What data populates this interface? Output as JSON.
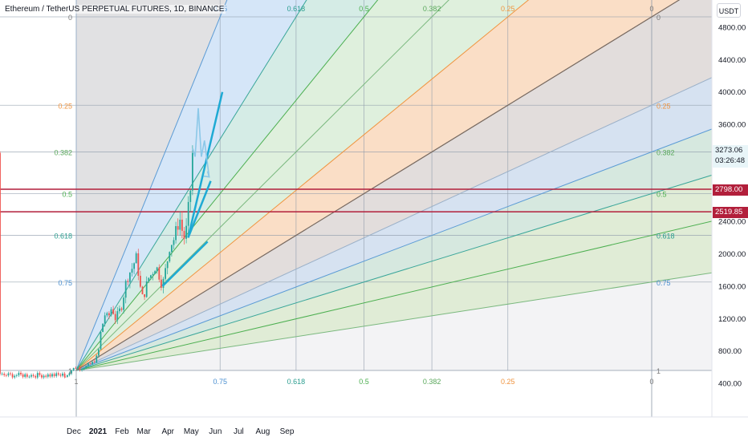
{
  "header": {
    "title": "Ethereum / TetherUS PERPETUAL FUTURES, 1D, BINANCE",
    "currency": "USDT"
  },
  "price_tags": {
    "last_price": "3273.06",
    "countdown": "03:26:48",
    "level_high": "2798.00",
    "level_low": "2519.85"
  },
  "colors": {
    "gray_fill": "#dddddf",
    "blue_fill": "#cfe3f8",
    "teal_fill": "#cfeae3",
    "green_fill": "#dbefd8",
    "orange_fill": "#fad9bd",
    "level_line": "#b21f3b",
    "arrow_line": "#1eaad4",
    "last_price_tag": "#e8f5f8",
    "candle_up": "#26a69a",
    "candle_down": "#ef5350"
  },
  "chart_data": {
    "type": "candlestick",
    "title": "Ethereum / TetherUS PERPETUAL FUTURES, 1D, BINANCE",
    "y_ticks": [
      "4800.00",
      "4400.00",
      "4000.00",
      "3600.00",
      "3200.00",
      "2800.00",
      "2400.00",
      "2000.00",
      "1600.00",
      "1200.00",
      "800.00",
      "400.00"
    ],
    "x_ticks": [
      "Dec",
      "2021",
      "Feb",
      "Mar",
      "Apr",
      "May",
      "Jun",
      "Jul",
      "Aug",
      "Sep"
    ],
    "ylim": [
      330,
      5060
    ],
    "horizontal_levels": [
      2798.0,
      2519.85
    ],
    "gann_box": {
      "price_levels": [
        "0",
        "0.25",
        "0.382",
        "0.5",
        "0.618",
        "0.75",
        "1"
      ],
      "time_levels": [
        "1",
        "0.75",
        "0.618",
        "0.5",
        "0.382",
        "0.25",
        "0"
      ],
      "fan_levels": [
        "0.75",
        "0.618",
        "0.5",
        "0.382",
        "0.25",
        "0"
      ]
    },
    "ohlc_path": [
      [
        "2020-11-20",
        480
      ],
      [
        "2020-11-27",
        560
      ],
      [
        "2020-12-04",
        600
      ],
      [
        "2020-12-11",
        590
      ],
      [
        "2020-12-18",
        610
      ],
      [
        "2020-12-25",
        650
      ],
      [
        "2021-01-01",
        740
      ],
      [
        "2021-01-05",
        1050
      ],
      [
        "2021-01-10",
        1250
      ],
      [
        "2021-01-14",
        1200
      ],
      [
        "2021-01-19",
        1350
      ],
      [
        "2021-01-23",
        1200
      ],
      [
        "2021-01-27",
        1250
      ],
      [
        "2021-02-01",
        1380
      ],
      [
        "2021-02-05",
        1600
      ],
      [
        "2021-02-09",
        1750
      ],
      [
        "2021-02-13",
        1800
      ],
      [
        "2021-02-17",
        1900
      ],
      [
        "2021-02-20",
        1950
      ],
      [
        "2021-02-24",
        1600
      ],
      [
        "2021-02-27",
        1450
      ],
      [
        "2021-03-03",
        1550
      ],
      [
        "2021-03-07",
        1700
      ],
      [
        "2021-03-11",
        1750
      ],
      [
        "2021-03-15",
        1850
      ],
      [
        "2021-03-19",
        1800
      ],
      [
        "2021-03-22",
        1700
      ],
      [
        "2021-03-25",
        1600
      ],
      [
        "2021-03-28",
        1750
      ],
      [
        "2021-03-31",
        1900
      ],
      [
        "2021-04-03",
        2100
      ],
      [
        "2021-04-06",
        2150
      ],
      [
        "2021-04-10",
        2200
      ],
      [
        "2021-04-13",
        2350
      ],
      [
        "2021-04-16",
        2450
      ],
      [
        "2021-04-19",
        2300
      ],
      [
        "2021-04-22",
        2200
      ],
      [
        "2021-04-25",
        2300
      ],
      [
        "2021-04-28",
        2600
      ],
      [
        "2021-05-01",
        2900
      ],
      [
        "2021-05-03",
        3300
      ]
    ],
    "projection_path": [
      [
        "2021-05-03",
        3300
      ],
      [
        "2021-05-06",
        3200
      ],
      [
        "2021-05-10",
        3800
      ],
      [
        "2021-05-14",
        3200
      ],
      [
        "2021-05-18",
        3400
      ],
      [
        "2021-05-24",
        2950
      ]
    ],
    "trend_lines": [
      [
        [
          "2021-03-25",
          1600
        ],
        [
          "2021-05-22",
          2150
        ]
      ],
      [
        [
          "2021-04-27",
          2200
        ],
        [
          "2021-05-26",
          2900
        ]
      ],
      [
        [
          "2021-04-27",
          2200
        ],
        [
          "2021-06-10",
          4000
        ]
      ]
    ]
  }
}
